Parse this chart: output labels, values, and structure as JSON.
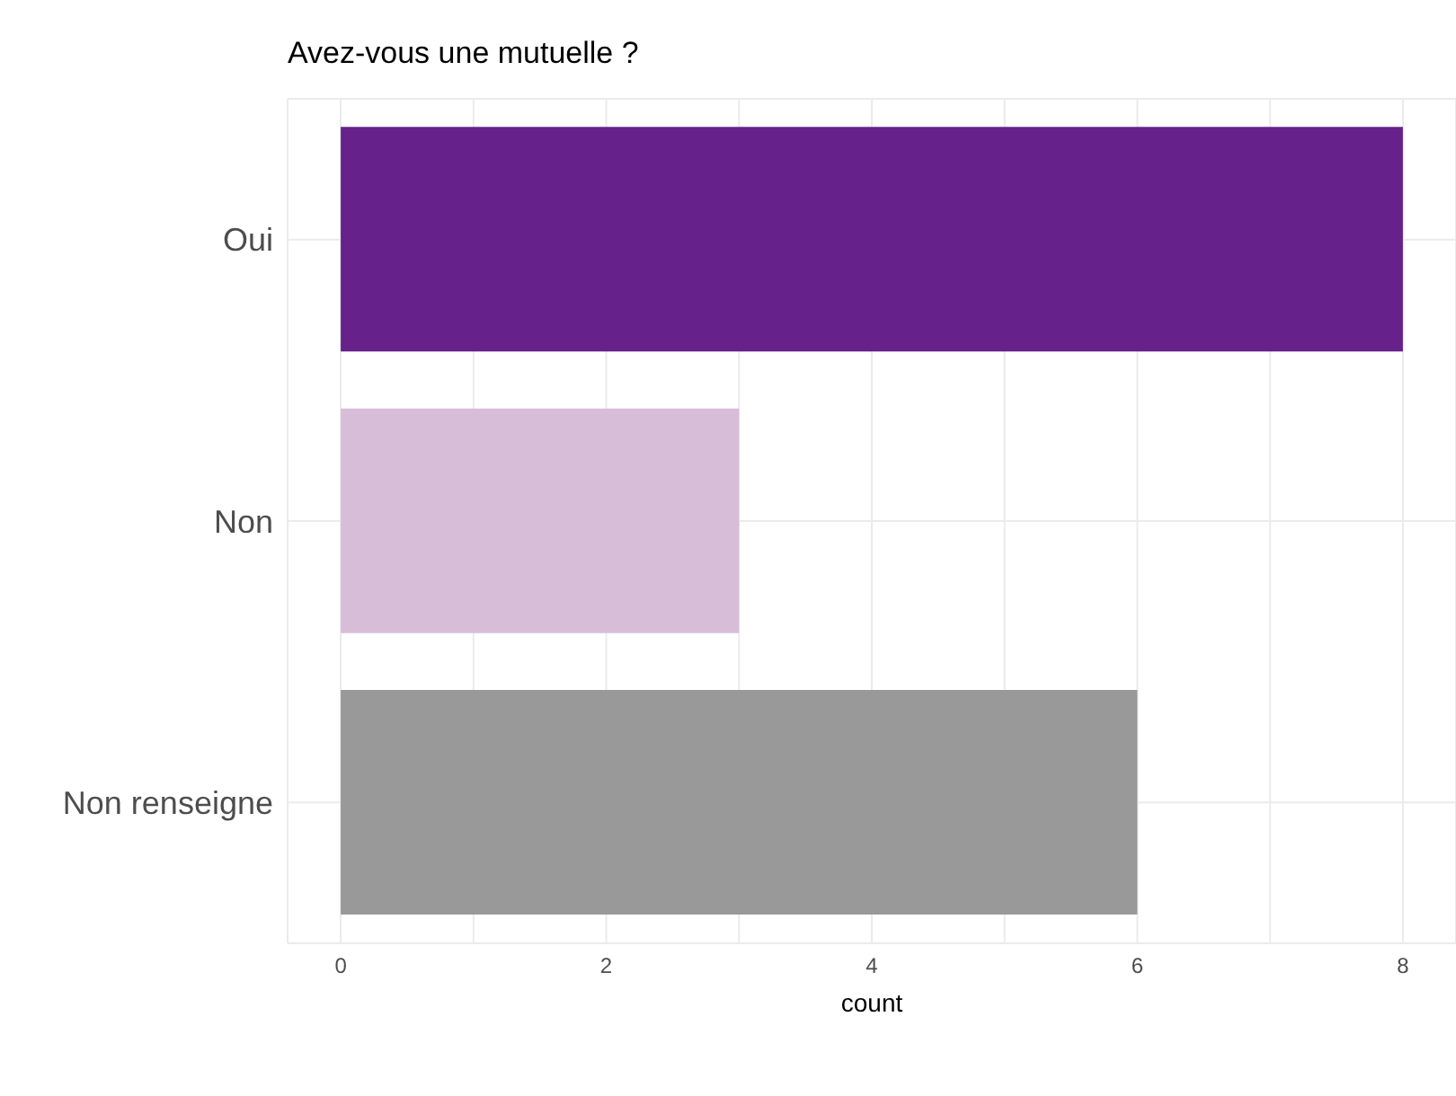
{
  "chart_data": {
    "type": "bar",
    "orientation": "horizontal",
    "title": "Avez-vous une mutuelle ?",
    "xlabel": "count",
    "categories": [
      "Oui",
      "Non",
      "Non renseigne"
    ],
    "values": [
      8,
      3,
      6
    ],
    "colors": [
      "#66218a",
      "#d7bdd8",
      "#999999"
    ],
    "xlim": [
      -0.4,
      8.4
    ],
    "xticks": [
      0,
      {
        "value": 1,
        "label": null
      },
      2,
      {
        "value": 3,
        "label": null
      },
      4,
      {
        "value": 5,
        "label": null
      },
      6,
      {
        "value": 7,
        "label": null
      },
      8
    ],
    "grid": true
  }
}
